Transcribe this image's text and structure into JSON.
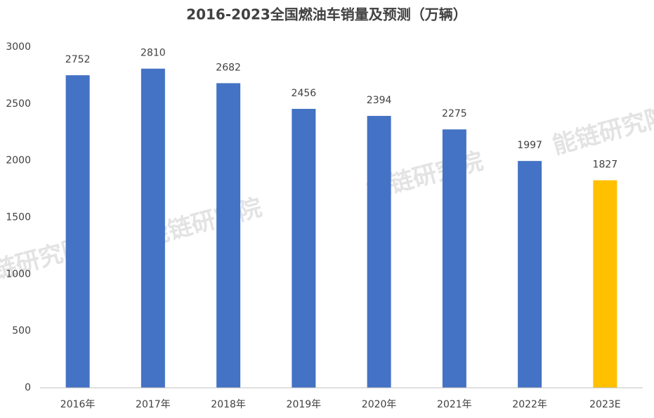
{
  "chart_data": {
    "type": "bar",
    "title": "2016-2023全国燃油车销量及预测（万辆）",
    "categories": [
      "2016年",
      "2017年",
      "2018年",
      "2019年",
      "2020年",
      "2021年",
      "2022年",
      "2023E"
    ],
    "values": [
      2752,
      2810,
      2682,
      2456,
      2394,
      2275,
      1997,
      1827
    ],
    "colors": [
      "#4472c4",
      "#4472c4",
      "#4472c4",
      "#4472c4",
      "#4472c4",
      "#4472c4",
      "#4472c4",
      "#ffc000"
    ],
    "ylim": [
      0,
      3000
    ],
    "yticks": [
      0,
      500,
      1000,
      1500,
      2000,
      2500,
      3000
    ],
    "grid": false,
    "watermark": "能链研究院"
  }
}
